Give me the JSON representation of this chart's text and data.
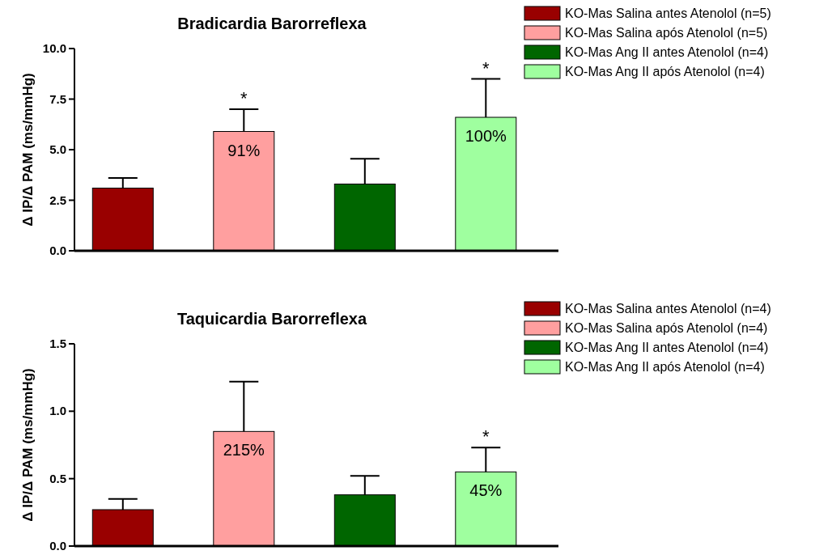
{
  "chart_data": [
    {
      "type": "bar",
      "title": "Bradicardia Barorreflexa",
      "ylabel": "Δ IP/Δ PAM (ms/mmHg)",
      "categories": [
        null,
        null,
        null,
        null
      ],
      "ylim": [
        0,
        10
      ],
      "yticks": [
        {
          "value": 0,
          "label": "0.0"
        },
        {
          "value": 2.5,
          "label": "2.5"
        },
        {
          "value": 5,
          "label": "5.0"
        },
        {
          "value": 7.5,
          "label": "7.5"
        },
        {
          "value": 10,
          "label": "10.0"
        }
      ],
      "legend": "top right",
      "grid": false,
      "series": [
        {
          "name": "KO-Mas Salina antes Atenolol (n=5)",
          "color": "#990000",
          "values": [
            3.1,
            null,
            null,
            null
          ],
          "errors": [
            [
              3.1,
              3.6
            ],
            null,
            null,
            null
          ]
        },
        {
          "name": "KO-Mas Salina após Atenolol (n=5)",
          "color": "#ff9f9f",
          "values": [
            null,
            5.9,
            null,
            null
          ],
          "errors": [
            null,
            [
              5.9,
              7.0
            ],
            null,
            null
          ]
        },
        {
          "name": "KO-Mas Ang II antes Atenolol (n=4)",
          "color": "#006600",
          "values": [
            null,
            null,
            3.3,
            null
          ],
          "errors": [
            null,
            null,
            [
              3.3,
              4.55
            ],
            null
          ]
        },
        {
          "name": "KO-Mas Ang II após Atenolol (n=4)",
          "color": "#9fff9f",
          "values": [
            null,
            null,
            null,
            6.6
          ],
          "errors": [
            null,
            null,
            null,
            [
              6.6,
              8.5
            ]
          ]
        }
      ],
      "annotations": [
        {
          "text": "*",
          "y": 7.0
        },
        {
          "text": "*",
          "y": 8.5
        },
        {
          "text": "91%",
          "y": 5.9
        },
        {
          "text": "100%",
          "y": 6.6
        }
      ]
    },
    {
      "type": "bar",
      "title": "Taquicardia Barorreflexa",
      "ylabel": "Δ IP/Δ PAM (ms/mmHg)",
      "categories": [
        null,
        null,
        null,
        null
      ],
      "ylim": [
        0,
        1.5
      ],
      "yticks": [
        {
          "value": 0,
          "label": "0.0"
        },
        {
          "value": 0.5,
          "label": "0.5"
        },
        {
          "value": 1,
          "label": "1.0"
        },
        {
          "value": 1.5,
          "label": "1.5"
        }
      ],
      "legend": "top right",
      "grid": false,
      "series": [
        {
          "name": "KO-Mas Salina antes Atenolol (n=4)",
          "color": "#990000",
          "values": [
            0.27,
            null,
            null,
            null
          ],
          "errors": [
            [
              0.27,
              0.35
            ],
            null,
            null,
            null
          ]
        },
        {
          "name": "KO-Mas Salina após Atenolol (n=4)",
          "color": "#ff9f9f",
          "values": [
            null,
            0.85,
            null,
            null
          ],
          "errors": [
            null,
            [
              0.85,
              1.22
            ],
            null,
            null
          ]
        },
        {
          "name": "KO-Mas Ang II antes Atenolol (n=4)",
          "color": "#006600",
          "values": [
            null,
            null,
            0.38,
            null
          ],
          "errors": [
            null,
            null,
            [
              0.38,
              0.52
            ],
            null
          ]
        },
        {
          "name": "KO-Mas Ang II após Atenolol (n=4)",
          "color": "#9fff9f",
          "values": [
            null,
            null,
            null,
            0.55
          ],
          "errors": [
            null,
            null,
            null,
            [
              0.55,
              0.73
            ]
          ]
        }
      ],
      "annotations": [
        {
          "text": "*",
          "y": 0.73
        },
        {
          "text": "215%",
          "y": 0.85
        },
        {
          "text": "45%",
          "y": 0.55
        }
      ]
    }
  ]
}
